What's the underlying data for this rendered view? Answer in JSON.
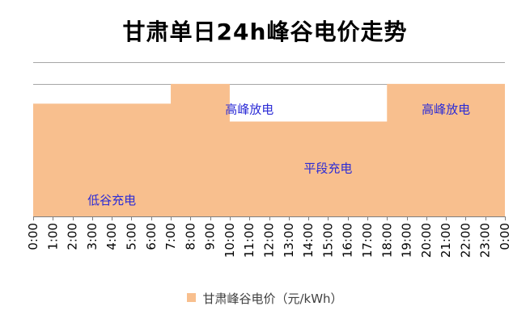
{
  "chart_data": {
    "type": "area",
    "title": "甘肃单日24h峰谷电价走势",
    "series": [
      {
        "name": "甘肃峰谷电价（元/kWh）",
        "color": "#F8BF8E",
        "values": [
          0.57,
          0.57,
          0.57,
          0.57,
          0.57,
          0.57,
          0.57,
          0.67,
          0.67,
          0.67,
          0.48,
          0.48,
          0.48,
          0.48,
          0.48,
          0.48,
          0.48,
          0.48,
          0.67,
          0.67,
          0.67,
          0.67,
          0.67,
          0.67,
          0.67
        ]
      }
    ],
    "categories": [
      "0:00",
      "1:00",
      "2:00",
      "3:00",
      "4:00",
      "5:00",
      "6:00",
      "7:00",
      "8:00",
      "9:00",
      "10:00",
      "11:00",
      "12:00",
      "13:00",
      "14:00",
      "15:00",
      "16:00",
      "17:00",
      "18:00",
      "19:00",
      "20:00",
      "21:00",
      "22:00",
      "23:00",
      "0:00"
    ],
    "ylim": [
      0,
      0.78
    ],
    "gridlines": [
      0.67,
      0.78
    ],
    "grid": true,
    "legend_position": "bottom",
    "annotations": [
      {
        "text": "低谷充电",
        "x": 4,
        "y": 0.08
      },
      {
        "text": "高峰放电",
        "x": 11,
        "y": 0.54
      },
      {
        "text": "平段充电",
        "x": 15,
        "y": 0.24
      },
      {
        "text": "高峰放电",
        "x": 21,
        "y": 0.54
      }
    ],
    "annotation_color": "#2B2BD6"
  }
}
